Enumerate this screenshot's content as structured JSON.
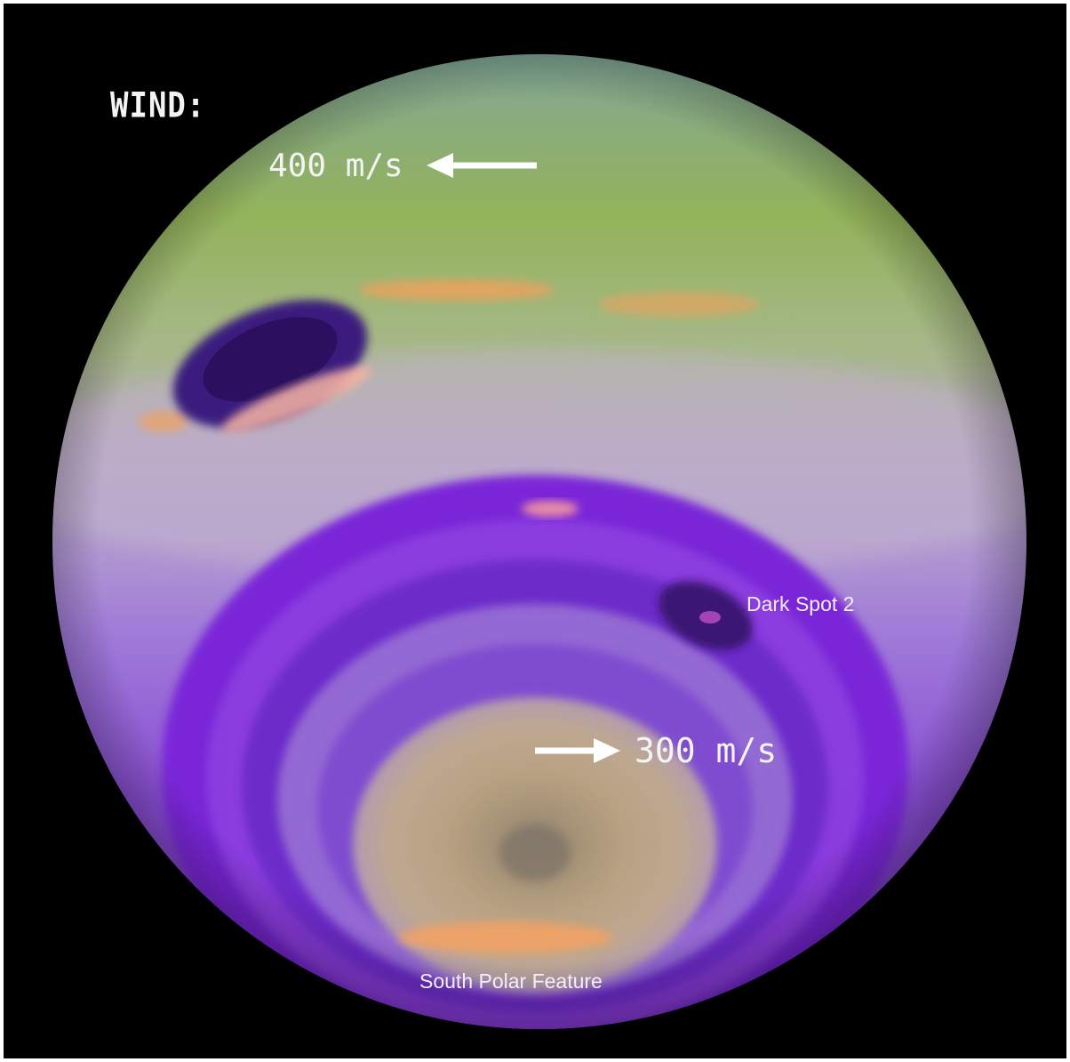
{
  "title": "WIND:",
  "wind_speeds": {
    "top": "400 m/s",
    "bottom": "300 m/s"
  },
  "feature_labels": {
    "dark_spot": "Dark Spot 2",
    "south_polar": "South Polar Feature"
  },
  "colors": {
    "background": "#000000",
    "north_band": "#8fb35a",
    "mid_band": "#b6a0c4",
    "south_band": "#7a2bd6",
    "pole": "#b9a285",
    "label": "#f4f4f4"
  }
}
